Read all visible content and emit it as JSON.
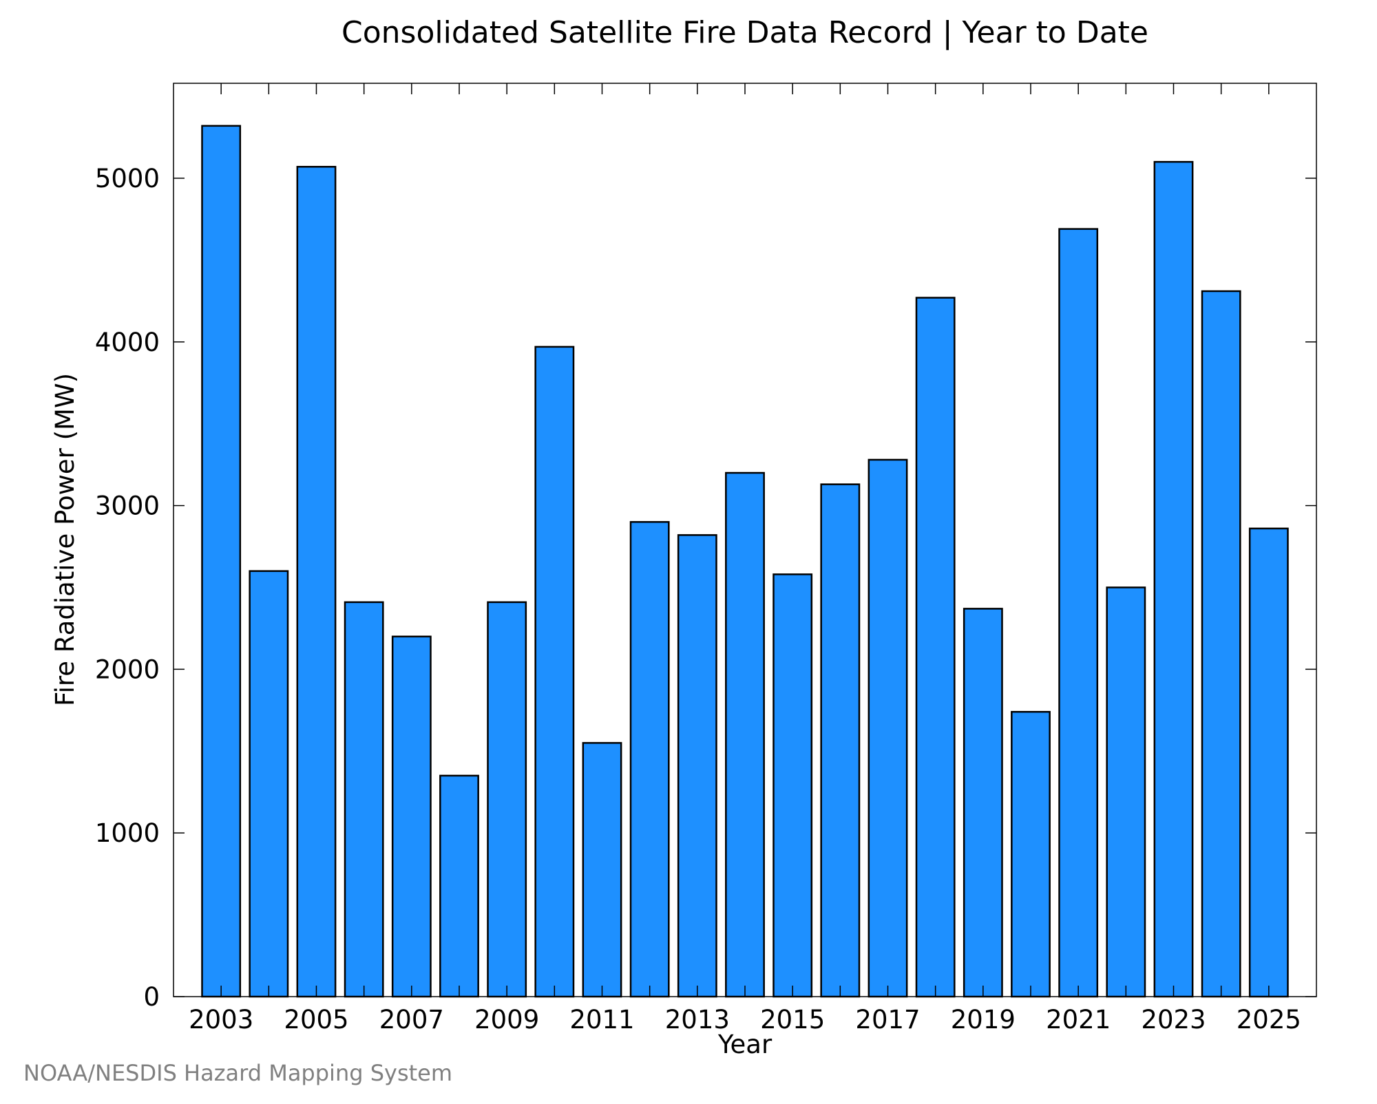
{
  "chart_data": {
    "type": "bar",
    "title": "Consolidated Satellite Fire Data Record | Year to Date",
    "xlabel": "Year",
    "ylabel": "Fire Radiative Power (MW)",
    "credit": "NOAA/NESDIS Hazard Mapping System",
    "categories": [
      "2003",
      "2004",
      "2005",
      "2006",
      "2007",
      "2008",
      "2009",
      "2010",
      "2011",
      "2012",
      "2013",
      "2014",
      "2015",
      "2016",
      "2017",
      "2018",
      "2019",
      "2020",
      "2021",
      "2022",
      "2023",
      "2024",
      "2025"
    ],
    "values": [
      5320,
      2600,
      5070,
      2410,
      2200,
      1350,
      2410,
      3970,
      1550,
      2900,
      2820,
      3200,
      2580,
      3130,
      3280,
      4270,
      2370,
      1740,
      4690,
      2500,
      5100,
      4310,
      2860
    ],
    "x_tick_labels": [
      "2003",
      "2005",
      "2007",
      "2009",
      "2011",
      "2013",
      "2015",
      "2017",
      "2019",
      "2021",
      "2023",
      "2025"
    ],
    "y_ticks": [
      0,
      1000,
      2000,
      3000,
      4000,
      5000
    ],
    "ylim": [
      0,
      5580
    ],
    "grid": false,
    "bar_color": "#1e90ff",
    "bar_edge_color": "#000000",
    "credit_color": "#808080"
  }
}
